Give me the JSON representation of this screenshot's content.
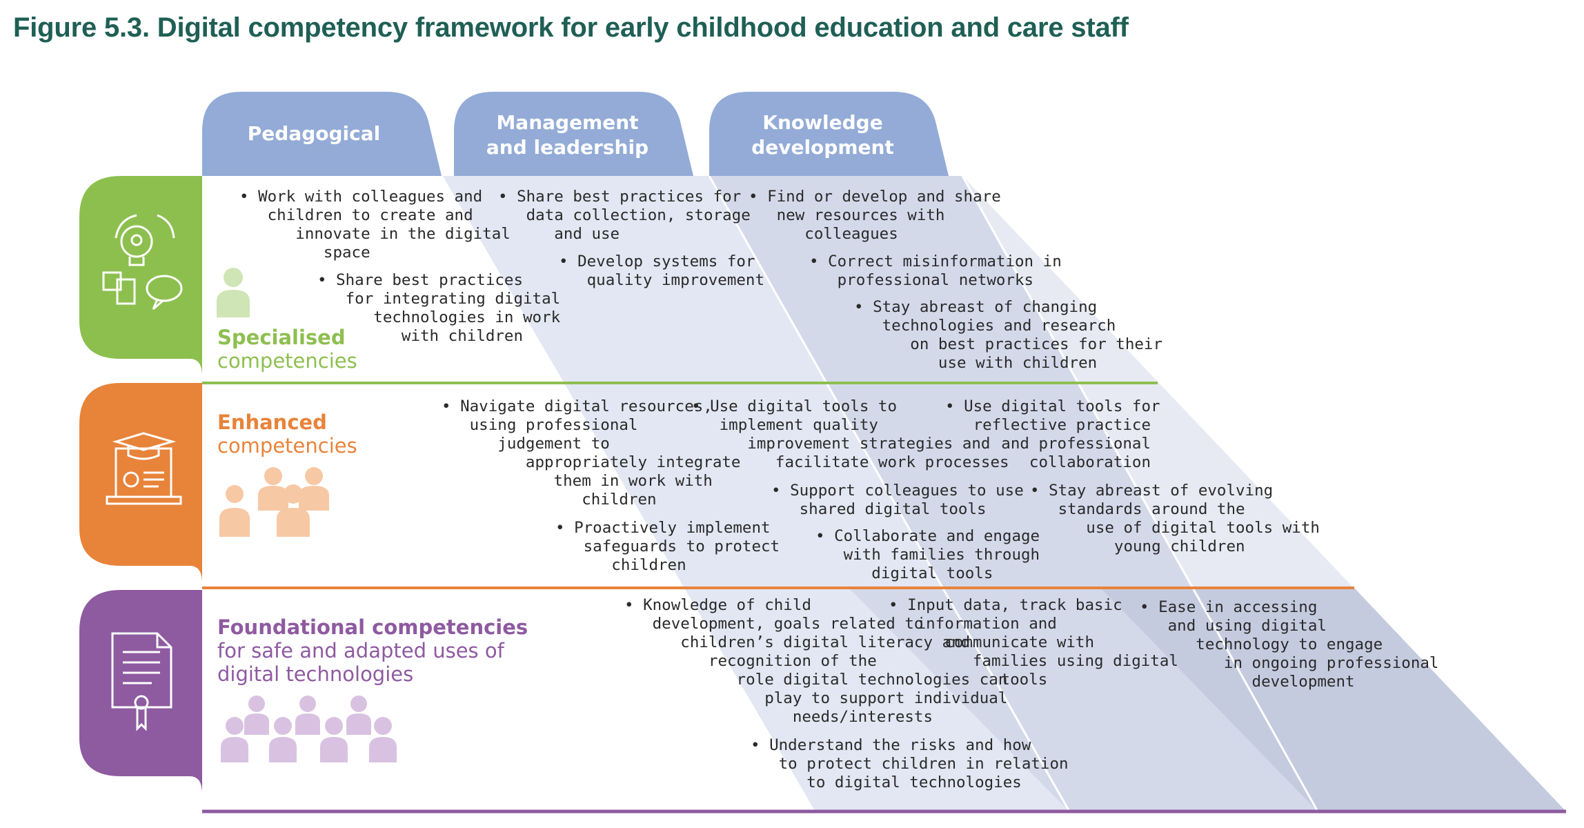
{
  "figure_title": "Figure 5.3. Digital competency framework for early childhood education and care staff",
  "columns": [
    {
      "label": "Pedagogical"
    },
    {
      "label": "Management\nand leadership"
    },
    {
      "label": "Knowledge\ndevelopment"
    }
  ],
  "levels": {
    "specialised": {
      "title_bold": "Specialised",
      "title_rest": "competencies",
      "color": "#8dbf4f",
      "icon": "lightbulb-puzzle-chat-icon",
      "people_icon": "single-person-icon"
    },
    "enhanced": {
      "title_bold": "Enhanced",
      "title_rest": "competencies",
      "color": "#e8833a",
      "icon": "laptop-graduation-cap-icon",
      "people_icon": "small-group-icon"
    },
    "foundational": {
      "title_bold": "Foundational competencies",
      "title_rest": "for safe and adapted uses of\ndigital technologies",
      "color": "#8e5aa0",
      "icon": "document-certificate-icon",
      "people_icon": "large-group-icon"
    }
  },
  "cells": {
    "spec_ped": [
      "• Work with colleagues and\n   children to create and\n      innovate in the digital\n         space",
      "• Share best practices\n   for integrating digital\n      technologies in work\n         with children"
    ],
    "spec_mgmt": [
      "• Share best practices for\n   data collection, storage\n      and use",
      "• Develop systems for\n   quality improvement"
    ],
    "spec_know": [
      "• Find or develop and share\n   new resources with\n      colleagues",
      "• Correct misinformation in\n   professional networks",
      "• Stay abreast of changing\n   technologies and research\n      on best practices for their\n         use with children"
    ],
    "enh_ped": [
      "• Navigate digital resources,\n   using professional\n      judgement to\n         appropriately integrate\n            them in work with\n               children",
      "• Proactively implement\n   safeguards to protect\n      children"
    ],
    "enh_mgmt": [
      "• Use digital tools to\n   implement quality\n      improvement strategies and\n         facilitate work processes",
      "• Support colleagues to use\n   shared digital tools",
      "• Collaborate and engage\n   with families through\n      digital tools"
    ],
    "enh_know": [
      "• Use digital tools for\n   reflective practice\n      and professional\n         collaboration",
      "• Stay abreast of evolving\n   standards around the\n      use of digital tools with\n         young children"
    ],
    "found_ped": [
      "• Knowledge of child\n   development, goals related to\n      children’s digital literacy and\n         recognition of the\n            role digital technologies can\n               play to support individual\n                  needs/interests",
      "• Understand the risks and how\n   to protect children in relation\n      to digital technologies"
    ],
    "found_mgmt": [
      "• Input data, track basic\n   information and\n      communicate with\n         families using digital\n            tools"
    ],
    "found_know": [
      "• Ease in accessing\n   and using digital\n      technology to engage\n         in ongoing professional\n            development"
    ]
  },
  "colors": {
    "tab_blue": "#93abd6",
    "band_light": "#e3e7f3",
    "band_mid": "#d4d9ea",
    "band_dark": "#c5cbdf",
    "title_green": "#1f5f55"
  }
}
